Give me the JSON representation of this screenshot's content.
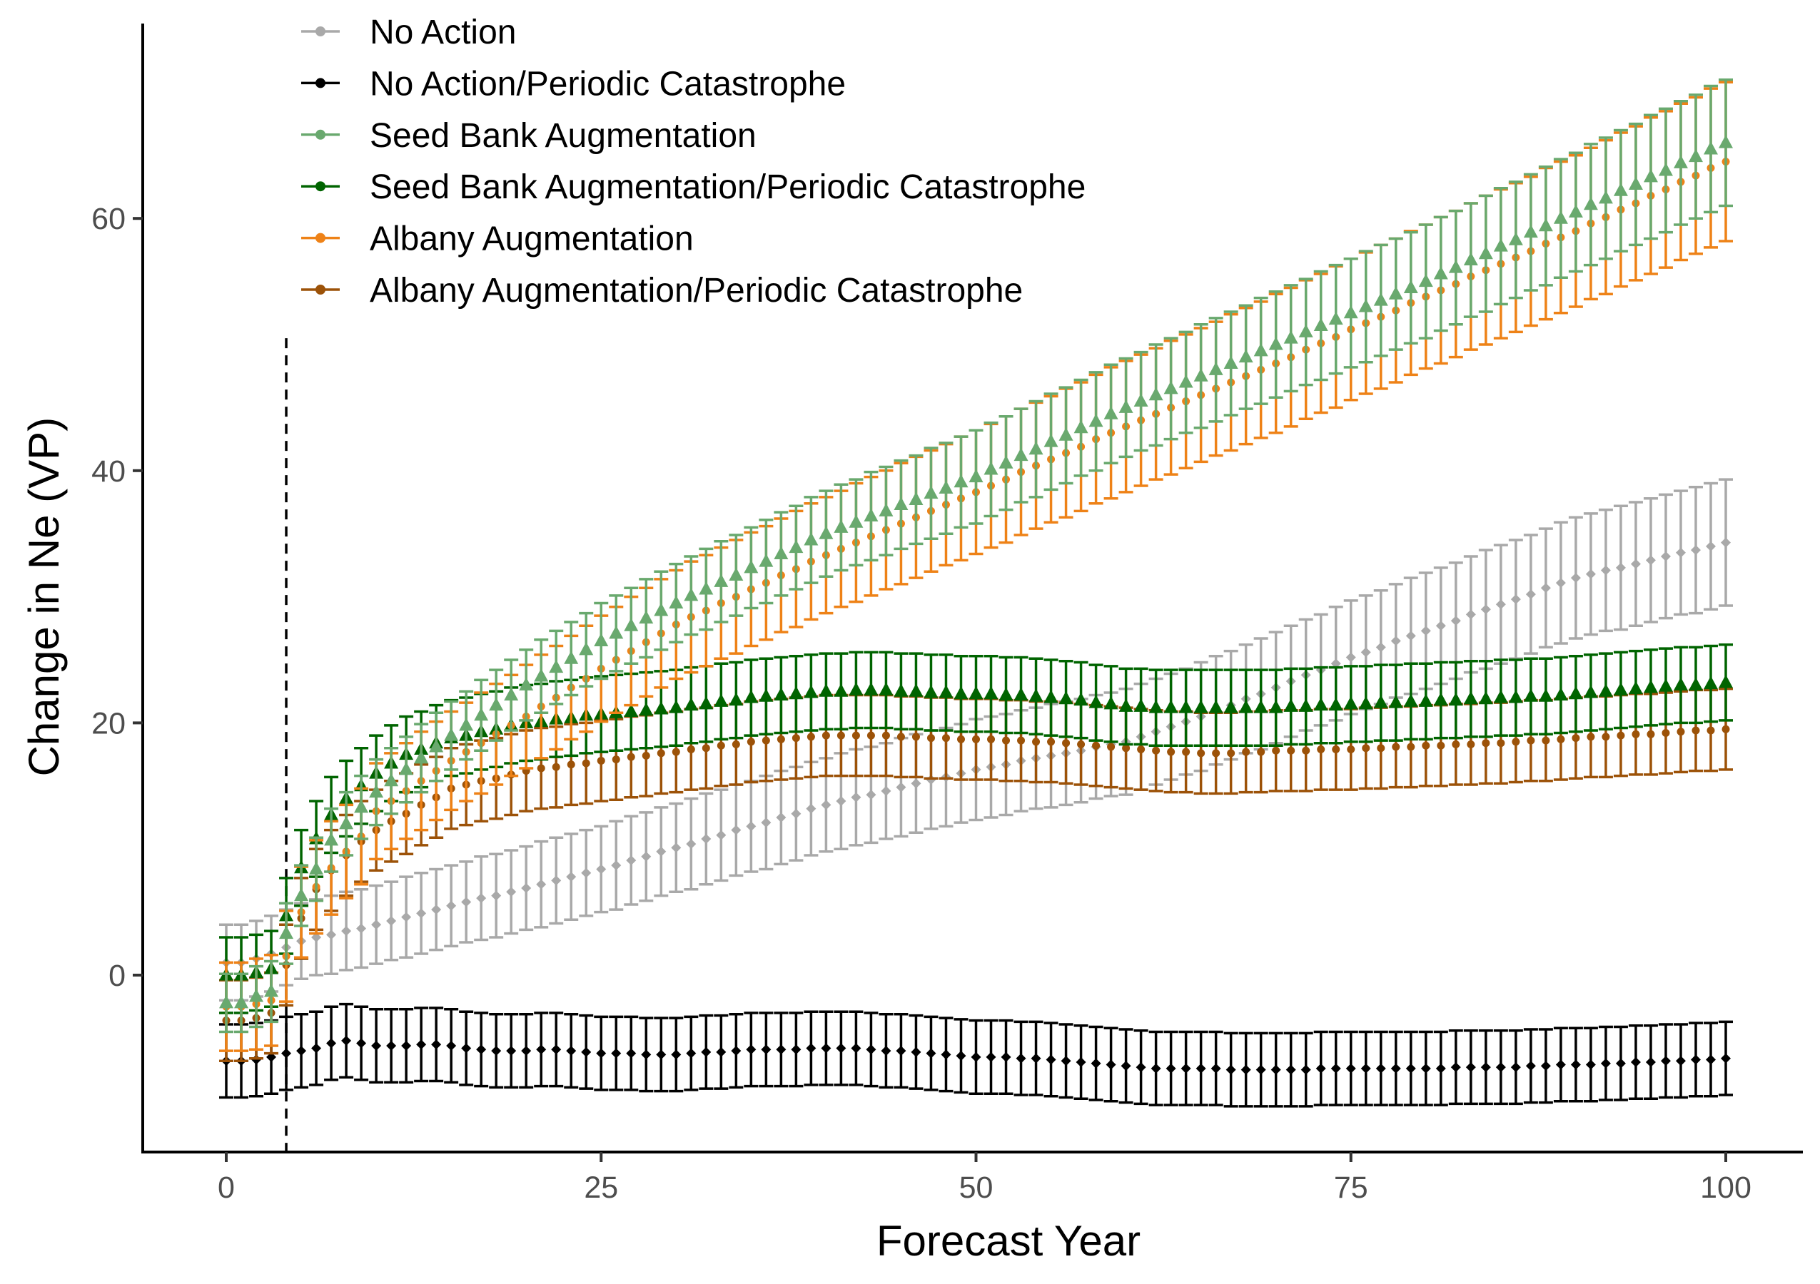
{
  "chart_data": {
    "type": "scatter",
    "subtype": "point-with-error-bars",
    "title": "",
    "xlabel": "Forecast Year",
    "ylabel": "Change in Ne (VP)",
    "xlim": [
      -5.5,
      105
    ],
    "ylim": [
      -14,
      75
    ],
    "xticks": [
      0,
      25,
      50,
      75,
      100
    ],
    "yticks": [
      0,
      20,
      40,
      60
    ],
    "grid": false,
    "legend_position": "top-left",
    "vline": {
      "x": 4,
      "ymax": 50.5,
      "style": "dashed",
      "color": "#000000"
    },
    "x": [
      0,
      1,
      2,
      3,
      4,
      5,
      6,
      7,
      8,
      9,
      10,
      11,
      12,
      13,
      14,
      15,
      16,
      17,
      18,
      19,
      20,
      21,
      22,
      23,
      24,
      25,
      26,
      27,
      28,
      29,
      30,
      31,
      32,
      33,
      34,
      35,
      36,
      37,
      38,
      39,
      40,
      41,
      42,
      43,
      44,
      45,
      46,
      47,
      48,
      49,
      50,
      51,
      52,
      53,
      54,
      55,
      56,
      57,
      58,
      59,
      60,
      61,
      62,
      63,
      64,
      65,
      66,
      67,
      68,
      69,
      70,
      71,
      72,
      73,
      74,
      75,
      76,
      77,
      78,
      79,
      80,
      81,
      82,
      83,
      84,
      85,
      86,
      87,
      88,
      89,
      90,
      91,
      92,
      93,
      94,
      95,
      96,
      97,
      98,
      99,
      100
    ],
    "series": [
      {
        "name": "No Action",
        "color": "#A9A9A9",
        "marker": "diamond",
        "values": [
          1.0,
          1.0,
          1.3,
          1.7,
          2.2,
          2.7,
          3.0,
          3.2,
          3.5,
          3.7,
          4.0,
          4.3,
          4.6,
          4.9,
          5.2,
          5.5,
          5.8,
          6.1,
          6.3,
          6.6,
          6.9,
          7.2,
          7.5,
          7.8,
          8.1,
          8.4,
          8.7,
          9.1,
          9.4,
          9.8,
          10.1,
          10.4,
          10.8,
          11.1,
          11.5,
          11.8,
          12.1,
          12.5,
          12.8,
          13.2,
          13.5,
          13.8,
          14.1,
          14.3,
          14.6,
          14.9,
          15.2,
          15.5,
          15.7,
          16.0,
          16.3,
          16.5,
          16.7,
          17.0,
          17.2,
          17.4,
          17.6,
          17.8,
          18.1,
          18.3,
          18.5,
          18.9,
          19.3,
          19.7,
          20.1,
          20.5,
          21.0,
          21.4,
          21.9,
          22.3,
          22.8,
          23.3,
          23.8,
          24.2,
          24.7,
          25.2,
          25.6,
          26.0,
          26.5,
          26.9,
          27.3,
          27.7,
          28.1,
          28.6,
          29.0,
          29.4,
          29.8,
          30.2,
          30.7,
          31.1,
          31.5,
          31.8,
          32.1,
          32.3,
          32.6,
          32.9,
          33.2,
          33.5,
          33.7,
          34.0,
          34.3
        ],
        "ci": [
          3.0,
          3.0,
          3.0,
          3.0,
          3.0,
          3.0,
          3.0,
          3.1,
          3.1,
          3.1,
          3.1,
          3.1,
          3.2,
          3.2,
          3.2,
          3.2,
          3.2,
          3.3,
          3.3,
          3.3,
          3.3,
          3.4,
          3.4,
          3.4,
          3.4,
          3.4,
          3.5,
          3.5,
          3.5,
          3.5,
          3.5,
          3.6,
          3.6,
          3.6,
          3.6,
          3.6,
          3.7,
          3.7,
          3.7,
          3.7,
          3.7,
          3.8,
          3.8,
          3.8,
          3.8,
          3.9,
          3.9,
          3.9,
          3.9,
          3.9,
          4.0,
          4.0,
          4.0,
          4.0,
          4.0,
          4.1,
          4.1,
          4.1,
          4.1,
          4.1,
          4.2,
          4.2,
          4.2,
          4.2,
          4.2,
          4.3,
          4.3,
          4.3,
          4.3,
          4.4,
          4.4,
          4.4,
          4.4,
          4.4,
          4.5,
          4.5,
          4.5,
          4.5,
          4.5,
          4.6,
          4.6,
          4.6,
          4.6,
          4.6,
          4.7,
          4.7,
          4.7,
          4.7,
          4.7,
          4.8,
          4.8,
          4.8,
          4.8,
          4.9,
          4.9,
          4.9,
          4.9,
          4.9,
          5.0,
          5.0,
          5.0
        ]
      },
      {
        "name": "No Action/Periodic Catastrophe",
        "color": "#000000",
        "marker": "diamond",
        "values": [
          -6.8,
          -6.8,
          -6.7,
          -6.5,
          -6.2,
          -6.0,
          -5.8,
          -5.4,
          -5.2,
          -5.4,
          -5.6,
          -5.6,
          -5.6,
          -5.5,
          -5.5,
          -5.6,
          -5.8,
          -5.9,
          -6.0,
          -6.0,
          -6.0,
          -5.9,
          -5.9,
          -6.0,
          -6.1,
          -6.2,
          -6.2,
          -6.2,
          -6.3,
          -6.3,
          -6.3,
          -6.2,
          -6.1,
          -6.1,
          -6.0,
          -5.9,
          -5.9,
          -5.9,
          -5.9,
          -5.8,
          -5.8,
          -5.8,
          -5.8,
          -5.9,
          -6.0,
          -6.0,
          -6.1,
          -6.2,
          -6.3,
          -6.4,
          -6.5,
          -6.5,
          -6.5,
          -6.6,
          -6.6,
          -6.7,
          -6.8,
          -6.9,
          -7.0,
          -7.1,
          -7.2,
          -7.3,
          -7.4,
          -7.4,
          -7.4,
          -7.4,
          -7.4,
          -7.5,
          -7.5,
          -7.5,
          -7.5,
          -7.5,
          -7.5,
          -7.4,
          -7.4,
          -7.4,
          -7.4,
          -7.4,
          -7.4,
          -7.4,
          -7.4,
          -7.4,
          -7.3,
          -7.3,
          -7.3,
          -7.3,
          -7.3,
          -7.2,
          -7.2,
          -7.1,
          -7.1,
          -7.1,
          -7.0,
          -7.0,
          -6.9,
          -6.9,
          -6.8,
          -6.8,
          -6.7,
          -6.7,
          -6.6
        ],
        "ci": 2.9
      },
      {
        "name": "Seed Bank Augmentation",
        "color": "#69A96E",
        "marker": "triangle",
        "values": [
          -2.2,
          -2.2,
          -1.7,
          -1.3,
          3.3,
          6.3,
          8.4,
          10.7,
          12.0,
          13.3,
          14.5,
          15.4,
          16.3,
          17.2,
          18.1,
          19.0,
          19.8,
          20.6,
          21.4,
          22.2,
          23.0,
          23.7,
          24.4,
          25.1,
          25.8,
          26.5,
          27.1,
          27.7,
          28.3,
          28.9,
          29.5,
          30.1,
          30.6,
          31.2,
          31.7,
          32.3,
          32.8,
          33.4,
          33.9,
          34.5,
          35.0,
          35.5,
          35.9,
          36.4,
          36.8,
          37.3,
          37.7,
          38.2,
          38.6,
          39.1,
          39.5,
          40.1,
          40.6,
          41.2,
          41.7,
          42.3,
          42.8,
          43.4,
          43.9,
          44.5,
          45.0,
          45.5,
          46.0,
          46.5,
          47.0,
          47.5,
          48.0,
          48.5,
          49.0,
          49.5,
          50.0,
          50.5,
          51.0,
          51.5,
          52.0,
          52.5,
          53.0,
          53.5,
          54.0,
          54.5,
          55.0,
          55.6,
          56.1,
          56.7,
          57.2,
          57.8,
          58.3,
          58.9,
          59.4,
          60.0,
          60.5,
          61.1,
          61.6,
          62.2,
          62.7,
          63.3,
          63.8,
          64.4,
          64.9,
          65.5,
          66.0
        ],
        "ci": [
          2.3,
          2.3,
          2.4,
          2.4,
          2.4,
          2.4,
          2.5,
          2.5,
          2.5,
          2.5,
          2.6,
          2.6,
          2.6,
          2.7,
          2.7,
          2.7,
          2.7,
          2.8,
          2.8,
          2.8,
          2.8,
          2.9,
          2.9,
          2.9,
          2.9,
          3.0,
          3.0,
          3.0,
          3.1,
          3.1,
          3.1,
          3.1,
          3.2,
          3.2,
          3.2,
          3.2,
          3.3,
          3.3,
          3.3,
          3.4,
          3.4,
          3.4,
          3.4,
          3.5,
          3.5,
          3.5,
          3.5,
          3.6,
          3.6,
          3.6,
          3.7,
          3.7,
          3.7,
          3.7,
          3.8,
          3.8,
          3.8,
          3.8,
          3.9,
          3.9,
          3.9,
          3.9,
          4.0,
          4.0,
          4.0,
          4.1,
          4.1,
          4.1,
          4.1,
          4.2,
          4.2,
          4.2,
          4.2,
          4.3,
          4.3,
          4.3,
          4.4,
          4.4,
          4.4,
          4.4,
          4.5,
          4.5,
          4.5,
          4.5,
          4.6,
          4.6,
          4.6,
          4.6,
          4.7,
          4.7,
          4.7,
          4.8,
          4.8,
          4.8,
          4.8,
          4.9,
          4.9,
          4.9,
          4.9,
          5.0,
          5.0
        ]
      },
      {
        "name": "Seed Bank Augmentation/Periodic Catastrophe",
        "color": "#006400",
        "marker": "triangle",
        "values": [
          0.0,
          0.0,
          0.2,
          0.5,
          4.7,
          8.5,
          10.8,
          12.7,
          14.0,
          15.0,
          16.0,
          16.8,
          17.5,
          17.9,
          18.4,
          18.8,
          19.0,
          19.3,
          19.5,
          19.8,
          20.0,
          20.1,
          20.3,
          20.4,
          20.6,
          20.7,
          20.8,
          20.9,
          21.0,
          21.1,
          21.2,
          21.4,
          21.5,
          21.7,
          21.8,
          22.0,
          22.1,
          22.2,
          22.3,
          22.4,
          22.5,
          22.5,
          22.6,
          22.6,
          22.6,
          22.5,
          22.5,
          22.4,
          22.4,
          22.3,
          22.3,
          22.3,
          22.2,
          22.2,
          22.1,
          22.0,
          21.9,
          21.8,
          21.6,
          21.5,
          21.3,
          21.3,
          21.2,
          21.2,
          21.2,
          21.2,
          21.2,
          21.2,
          21.2,
          21.2,
          21.2,
          21.3,
          21.3,
          21.4,
          21.4,
          21.5,
          21.5,
          21.6,
          21.6,
          21.7,
          21.7,
          21.8,
          21.8,
          21.9,
          21.9,
          22.0,
          22.0,
          22.1,
          22.1,
          22.2,
          22.3,
          22.4,
          22.5,
          22.6,
          22.7,
          22.8,
          22.9,
          23.0,
          23.0,
          23.1,
          23.2
        ],
        "ci": 3.0
      },
      {
        "name": "Albany Augmentation",
        "color": "#EE8217",
        "marker": "circle",
        "values": [
          -2.5,
          -2.5,
          -2.3,
          -2.0,
          1.5,
          5.0,
          7.0,
          8.5,
          9.8,
          11.0,
          13.0,
          13.8,
          14.6,
          15.4,
          16.2,
          17.0,
          17.7,
          18.4,
          19.1,
          19.8,
          20.5,
          21.3,
          22.0,
          22.8,
          23.5,
          24.3,
          25.0,
          25.7,
          26.4,
          27.1,
          27.8,
          28.4,
          28.9,
          29.5,
          30.0,
          30.6,
          31.1,
          31.7,
          32.2,
          32.8,
          33.3,
          33.8,
          34.3,
          34.8,
          35.3,
          35.8,
          36.3,
          36.8,
          37.3,
          37.8,
          38.3,
          38.8,
          39.3,
          39.9,
          40.4,
          40.9,
          41.4,
          41.9,
          42.5,
          43.0,
          43.5,
          44.0,
          44.5,
          45.0,
          45.5,
          46.0,
          46.5,
          47.0,
          47.5,
          48.0,
          48.5,
          49.0,
          49.6,
          50.1,
          50.6,
          51.2,
          51.7,
          52.2,
          52.7,
          53.3,
          53.8,
          54.3,
          54.8,
          55.4,
          55.9,
          56.4,
          56.9,
          57.4,
          58.0,
          58.5,
          59.0,
          59.6,
          60.1,
          60.7,
          61.2,
          61.8,
          62.3,
          62.9,
          63.4,
          64.0,
          64.5
        ],
        "ci": [
          3.5,
          3.5,
          3.6,
          3.6,
          3.6,
          3.6,
          3.7,
          3.7,
          3.7,
          3.8,
          3.8,
          3.8,
          3.8,
          3.9,
          3.9,
          3.9,
          3.9,
          4.0,
          4.0,
          4.0,
          4.1,
          4.1,
          4.1,
          4.1,
          4.2,
          4.2,
          4.2,
          4.3,
          4.3,
          4.3,
          4.3,
          4.4,
          4.4,
          4.4,
          4.5,
          4.5,
          4.5,
          4.5,
          4.6,
          4.6,
          4.6,
          4.6,
          4.7,
          4.7,
          4.7,
          4.8,
          4.8,
          4.8,
          4.8,
          4.9,
          4.9,
          4.9,
          5.0,
          5.0,
          5.0,
          5.0,
          5.1,
          5.1,
          5.1,
          5.2,
          5.2,
          5.2,
          5.2,
          5.3,
          5.3,
          5.3,
          5.3,
          5.4,
          5.4,
          5.4,
          5.5,
          5.5,
          5.5,
          5.5,
          5.6,
          5.6,
          5.6,
          5.7,
          5.7,
          5.7,
          5.7,
          5.8,
          5.8,
          5.8,
          5.9,
          5.9,
          5.9,
          5.9,
          6.0,
          6.0,
          6.0,
          6.0,
          6.1,
          6.1,
          6.1,
          6.2,
          6.2,
          6.2,
          6.2,
          6.3,
          6.3
        ]
      },
      {
        "name": "Albany Augmentation/Periodic Catastrophe",
        "color": "#9C5208",
        "marker": "circle",
        "values": [
          -3.6,
          -3.6,
          -3.4,
          -3.0,
          0.8,
          4.5,
          6.8,
          8.3,
          9.5,
          10.6,
          11.5,
          12.2,
          12.8,
          13.5,
          14.1,
          14.8,
          15.1,
          15.4,
          15.6,
          15.9,
          16.2,
          16.4,
          16.5,
          16.7,
          16.8,
          17.0,
          17.1,
          17.3,
          17.4,
          17.6,
          17.7,
          17.9,
          18.0,
          18.2,
          18.3,
          18.5,
          18.6,
          18.7,
          18.8,
          18.9,
          19.0,
          19.0,
          19.0,
          19.0,
          19.0,
          18.9,
          18.9,
          18.8,
          18.8,
          18.7,
          18.7,
          18.7,
          18.6,
          18.6,
          18.5,
          18.5,
          18.4,
          18.3,
          18.2,
          18.1,
          18.0,
          17.9,
          17.8,
          17.7,
          17.7,
          17.6,
          17.6,
          17.6,
          17.7,
          17.7,
          17.8,
          17.8,
          17.8,
          17.9,
          17.9,
          17.9,
          18.0,
          18.0,
          18.1,
          18.1,
          18.2,
          18.2,
          18.3,
          18.3,
          18.4,
          18.4,
          18.5,
          18.6,
          18.6,
          18.7,
          18.8,
          18.9,
          18.9,
          19.0,
          19.1,
          19.1,
          19.2,
          19.3,
          19.4,
          19.4,
          19.5
        ],
        "ci": 3.2
      }
    ]
  }
}
